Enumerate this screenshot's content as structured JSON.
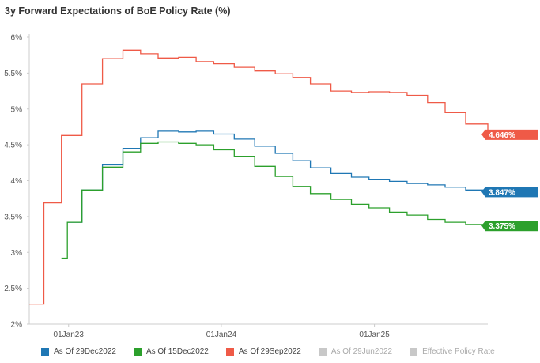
{
  "title": "3y Forward Expectations of BoE Policy Rate (%)",
  "chart_data": {
    "type": "line",
    "step": true,
    "ylim": [
      2,
      6
    ],
    "y_ticks": [
      "6%",
      "5.5%",
      "5%",
      "4.5%",
      "4%",
      "3.5%",
      "3%",
      "2.5%",
      "2%"
    ],
    "x_ticks": [
      "01Jan23",
      "01Jan24",
      "01Jan25"
    ],
    "xrange": [
      "2022-09-29",
      "2025-09-29"
    ],
    "series": [
      {
        "name": "As Of 29Dec2022",
        "color": "#1f77b4",
        "end_label": "3.847%",
        "visible": true,
        "x": [
          "2022-12-29",
          "2023-02-02",
          "2023-03-23",
          "2023-05-11",
          "2023-06-22",
          "2023-08-03",
          "2023-09-21",
          "2023-11-02",
          "2023-12-14",
          "2024-02-01",
          "2024-03-21",
          "2024-05-09",
          "2024-06-20",
          "2024-08-01",
          "2024-09-19",
          "2024-11-07",
          "2024-12-19",
          "2025-02-06",
          "2025-03-20",
          "2025-05-08",
          "2025-06-19",
          "2025-08-07",
          "2025-09-29"
        ],
        "values": [
          3.42,
          3.87,
          4.22,
          4.45,
          4.6,
          4.69,
          4.68,
          4.69,
          4.65,
          4.58,
          4.48,
          4.38,
          4.28,
          4.18,
          4.1,
          4.05,
          4.02,
          3.99,
          3.96,
          3.94,
          3.91,
          3.87,
          3.847
        ]
      },
      {
        "name": "As Of 15Dec2022",
        "color": "#2ca02c",
        "end_label": "3.375%",
        "visible": true,
        "x": [
          "2022-12-15",
          "2022-12-29",
          "2023-02-02",
          "2023-03-23",
          "2023-05-11",
          "2023-06-22",
          "2023-08-03",
          "2023-09-21",
          "2023-11-02",
          "2023-12-14",
          "2024-02-01",
          "2024-03-21",
          "2024-05-09",
          "2024-06-20",
          "2024-08-01",
          "2024-09-19",
          "2024-11-07",
          "2024-12-19",
          "2025-02-06",
          "2025-03-20",
          "2025-05-08",
          "2025-06-19",
          "2025-08-07",
          "2025-09-29"
        ],
        "values": [
          2.92,
          3.42,
          3.87,
          4.19,
          4.4,
          4.52,
          4.54,
          4.52,
          4.5,
          4.43,
          4.34,
          4.2,
          4.06,
          3.92,
          3.82,
          3.74,
          3.67,
          3.62,
          3.56,
          3.52,
          3.46,
          3.42,
          3.39,
          3.375
        ]
      },
      {
        "name": "As Of 29Sep2022",
        "color": "#ef5a47",
        "end_label": "4.646%",
        "visible": true,
        "x": [
          "2022-09-29",
          "2022-11-03",
          "2022-12-15",
          "2023-02-02",
          "2023-03-23",
          "2023-05-11",
          "2023-06-22",
          "2023-08-03",
          "2023-09-21",
          "2023-11-02",
          "2023-12-14",
          "2024-02-01",
          "2024-03-21",
          "2024-05-09",
          "2024-06-20",
          "2024-08-01",
          "2024-09-19",
          "2024-11-07",
          "2024-12-19",
          "2025-02-06",
          "2025-03-20",
          "2025-05-08",
          "2025-06-19",
          "2025-08-07",
          "2025-09-29"
        ],
        "values": [
          2.28,
          3.69,
          4.63,
          5.35,
          5.7,
          5.82,
          5.77,
          5.71,
          5.72,
          5.66,
          5.63,
          5.58,
          5.53,
          5.49,
          5.44,
          5.35,
          5.25,
          5.23,
          5.24,
          5.23,
          5.19,
          5.09,
          4.95,
          4.79,
          4.646
        ]
      }
    ],
    "legend": [
      {
        "label": "As Of 29Dec2022",
        "color": "#1f77b4",
        "active": true
      },
      {
        "label": "As Of 15Dec2022",
        "color": "#2ca02c",
        "active": true
      },
      {
        "label": "As Of 29Sep2022",
        "color": "#ef5a47",
        "active": true
      },
      {
        "label": "As Of 29Jun2022",
        "color": "#c8c8c8",
        "active": false
      },
      {
        "label": "Effective Policy Rate",
        "color": "#c8c8c8",
        "active": false
      }
    ],
    "legend_position": "bottom",
    "grid": false
  }
}
